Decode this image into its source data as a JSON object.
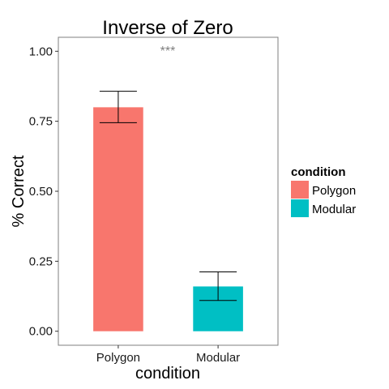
{
  "chart_data": {
    "type": "bar",
    "title": "Inverse of Zero",
    "xlabel": "condition",
    "ylabel": "% Correct",
    "categories": [
      "Polygon",
      "Modular"
    ],
    "values": [
      0.8,
      0.16
    ],
    "error_low": [
      0.745,
      0.11
    ],
    "error_high": [
      0.857,
      0.212
    ],
    "colors": [
      "#F8766D",
      "#00BFC4"
    ],
    "ylim": [
      -0.05,
      1.05
    ],
    "yticks": [
      0.0,
      0.25,
      0.5,
      0.75,
      1.0
    ],
    "ytick_labels": [
      "0.00",
      "0.25",
      "0.50",
      "0.75",
      "1.00"
    ],
    "grid": false,
    "legend": {
      "title": "condition",
      "position": "right",
      "entries": [
        "Polygon",
        "Modular"
      ]
    },
    "annotation": "***"
  }
}
